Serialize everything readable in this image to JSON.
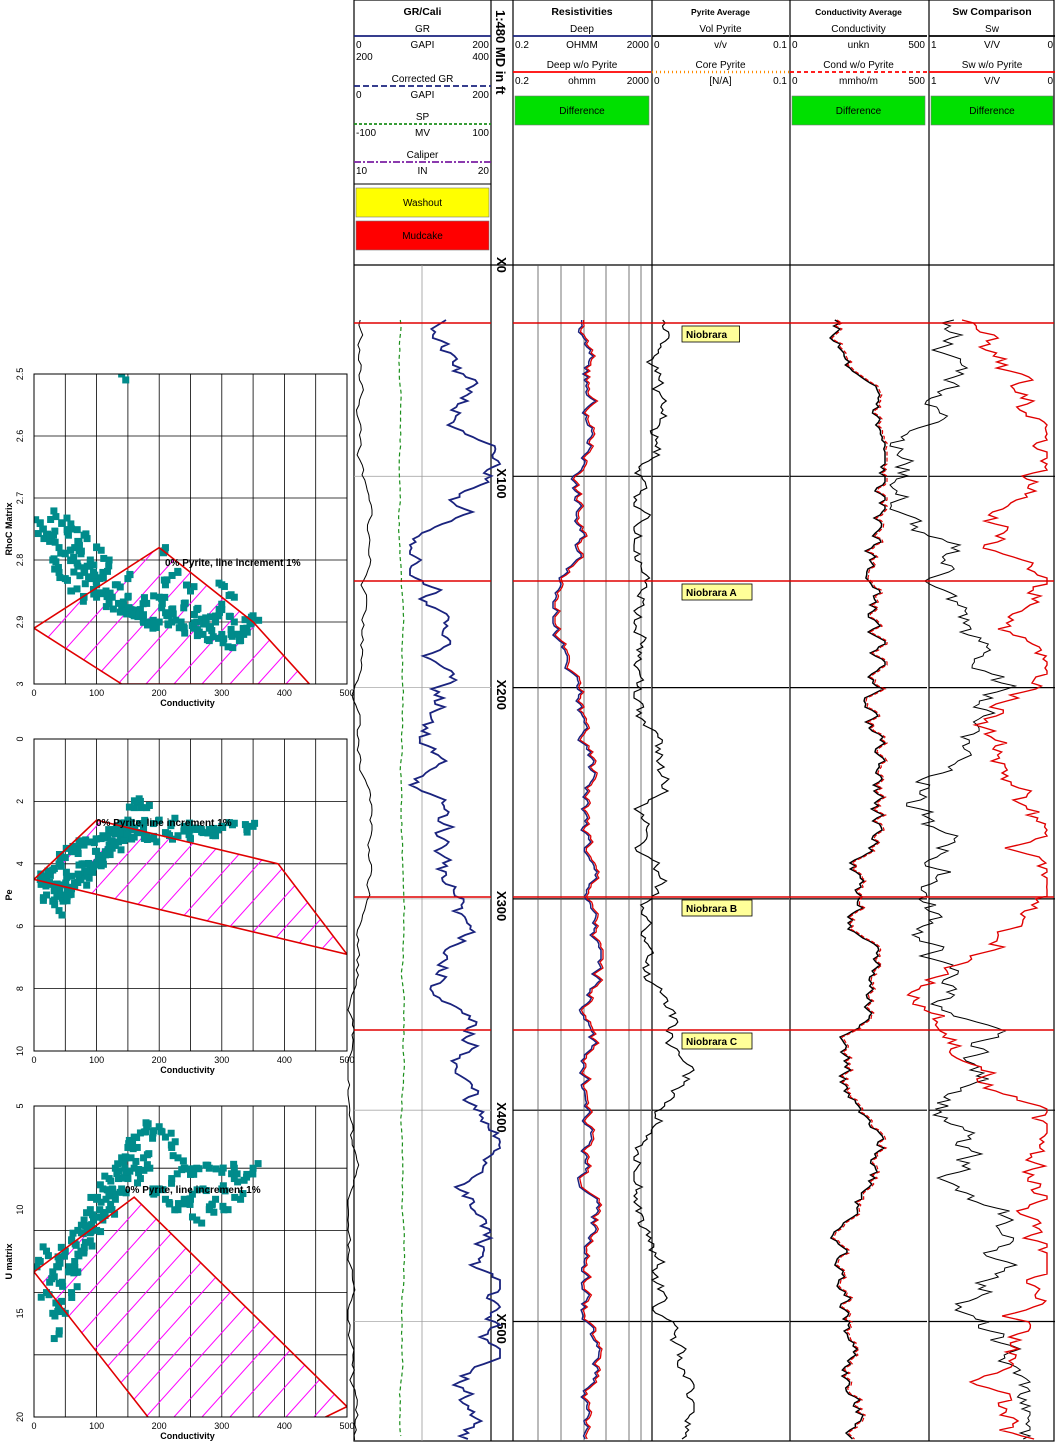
{
  "tracks": [
    {
      "title": "GR/Cali",
      "rows": [
        {
          "name": "GR",
          "min": "0",
          "unit": "GAPI",
          "max": "200",
          "color": "#1a237e",
          "dash": "",
          "alt_min": "200",
          "alt_max": "400"
        },
        {
          "name": "Corrected GR",
          "min": "0",
          "unit": "GAPI",
          "max": "200",
          "color": "#1a237e",
          "dash": "6,3"
        },
        {
          "name": "SP",
          "min": "-100",
          "unit": "MV",
          "max": "100",
          "color": "#1b8f1b",
          "dash": "3,2"
        },
        {
          "name": "Caliper",
          "min": "10",
          "unit": "IN",
          "max": "20",
          "color": "#7b1fa2",
          "dash": "7,2,2,2"
        }
      ],
      "boxes": [
        {
          "label": "Washout",
          "color": "#ffff00"
        },
        {
          "label": "Mudcake",
          "color": "#ff0000"
        }
      ]
    },
    {
      "title": "Resistivities",
      "rows": [
        {
          "name": "Deep",
          "min": "0.2",
          "unit": "OHMM",
          "max": "2000",
          "color": "#1a237e",
          "dash": ""
        },
        {
          "name": "Deep w/o Pyrite",
          "min": "0.2",
          "unit": "ohmm",
          "max": "2000",
          "color": "#ff0000",
          "dash": ""
        }
      ],
      "boxes": [
        {
          "label": "Difference",
          "color": "#00e000"
        }
      ]
    },
    {
      "title": "Pyrite Average",
      "rows": [
        {
          "name": "Vol Pyrite",
          "min": "0",
          "unit": "v/v",
          "max": "0.1",
          "color": "#000000",
          "dash": ""
        },
        {
          "name": "Core Pyrite",
          "min": "0",
          "unit": "[N/A]",
          "max": "0.1",
          "color": "#ff8c00",
          "dash": "dot"
        }
      ],
      "boxes": []
    },
    {
      "title": "Conductivity Average",
      "rows": [
        {
          "name": "Conductivity",
          "min": "0",
          "unit": "unkn",
          "max": "500",
          "color": "#000000",
          "dash": ""
        },
        {
          "name": "Cond w/o Pyrite",
          "min": "0",
          "unit": "mmho/m",
          "max": "500",
          "color": "#ff0000",
          "dash": "4,3"
        }
      ],
      "boxes": [
        {
          "label": "Difference",
          "color": "#00e000"
        }
      ]
    },
    {
      "title": "Sw Comparison",
      "rows": [
        {
          "name": "Sw",
          "min": "1",
          "unit": "V/V",
          "max": "0",
          "color": "#000000",
          "dash": ""
        },
        {
          "name": "Sw w/o Pyrite",
          "min": "1",
          "unit": "V/V",
          "max": "0",
          "color": "#ff0000",
          "dash": ""
        }
      ],
      "boxes": [
        {
          "label": "Difference",
          "color": "#00e000"
        }
      ]
    }
  ],
  "depth_track": {
    "scale_label": "1:480 MD in ft",
    "ticks": [
      "X0",
      "X100",
      "X200",
      "X300",
      "X400",
      "X500"
    ]
  },
  "formation_tops": [
    {
      "name": "Niobrara",
      "depth": 27
    },
    {
      "name": "Niobrara A",
      "depth": 149
    },
    {
      "name": "Niobrara B",
      "depth": 298
    },
    {
      "name": "Niobrara C",
      "depth": 361
    }
  ],
  "colors": {
    "teal": "#008b8b",
    "red": "#e00000",
    "magenta": "#ff00ff",
    "blue": "#1a237e",
    "green": "#00e000"
  },
  "chart_data": [
    {
      "type": "scatter",
      "title": "",
      "xlabel": "Conductivity",
      "ylabel": "RhoC Matrix",
      "xlim": [
        0,
        500
      ],
      "ylim": [
        2.5,
        3.0
      ],
      "y_inverted": true,
      "x_ticks": [
        "0",
        "100",
        "200",
        "300",
        "400",
        "500"
      ],
      "y_ticks": [
        "2.5",
        "2.6",
        "2.7",
        "2.8",
        "2.9",
        "3"
      ],
      "annotation": "0% Pyrite, line increment 1%",
      "grid": true,
      "points": [
        [
          10,
          2.74
        ],
        [
          15,
          2.75
        ],
        [
          20,
          2.76
        ],
        [
          25,
          2.77
        ],
        [
          30,
          2.76
        ],
        [
          40,
          2.78
        ],
        [
          50,
          2.79
        ],
        [
          60,
          2.8
        ],
        [
          70,
          2.81
        ],
        [
          80,
          2.82
        ],
        [
          90,
          2.83
        ],
        [
          100,
          2.84
        ],
        [
          30,
          2.8
        ],
        [
          40,
          2.82
        ],
        [
          50,
          2.83
        ],
        [
          60,
          2.85
        ],
        [
          80,
          2.86
        ],
        [
          100,
          2.86
        ],
        [
          120,
          2.87
        ],
        [
          140,
          2.88
        ],
        [
          160,
          2.89
        ],
        [
          180,
          2.9
        ],
        [
          200,
          2.9
        ],
        [
          220,
          2.88
        ],
        [
          240,
          2.87
        ],
        [
          260,
          2.9
        ],
        [
          280,
          2.91
        ],
        [
          300,
          2.92
        ],
        [
          320,
          2.9
        ],
        [
          340,
          2.91
        ],
        [
          300,
          2.88
        ],
        [
          320,
          2.86
        ],
        [
          250,
          2.85
        ],
        [
          210,
          2.84
        ],
        [
          230,
          2.82
        ],
        [
          210,
          2.78
        ],
        [
          300,
          2.84
        ],
        [
          290,
          2.9
        ],
        [
          270,
          2.92
        ],
        [
          240,
          2.91
        ],
        [
          150,
          2.86
        ],
        [
          130,
          2.84
        ],
        [
          110,
          2.82
        ],
        [
          90,
          2.8
        ],
        [
          70,
          2.77
        ],
        [
          60,
          2.75
        ],
        [
          80,
          2.76
        ],
        [
          100,
          2.78
        ],
        [
          120,
          2.8
        ],
        [
          150,
          2.83
        ],
        [
          180,
          2.87
        ],
        [
          200,
          2.86
        ],
        [
          220,
          2.9
        ],
        [
          260,
          2.88
        ],
        [
          280,
          2.93
        ],
        [
          310,
          2.94
        ],
        [
          330,
          2.93
        ],
        [
          35,
          2.73
        ],
        [
          45,
          2.74
        ],
        [
          55,
          2.76
        ],
        [
          65,
          2.78
        ],
        [
          75,
          2.79
        ],
        [
          85,
          2.81
        ],
        [
          95,
          2.82
        ],
        [
          105,
          2.83
        ],
        [
          115,
          2.85
        ],
        [
          125,
          2.86
        ],
        [
          135,
          2.87
        ],
        [
          145,
          2.88
        ],
        [
          155,
          2.88
        ],
        [
          165,
          2.89
        ],
        [
          175,
          2.9
        ],
        [
          190,
          2.91
        ],
        [
          170,
          2.88
        ],
        [
          205,
          2.87
        ],
        [
          215,
          2.89
        ],
        [
          235,
          2.9
        ],
        [
          255,
          2.91
        ],
        [
          275,
          2.9
        ],
        [
          295,
          2.89
        ],
        [
          315,
          2.92
        ],
        [
          335,
          2.92
        ],
        [
          345,
          2.9
        ],
        [
          350,
          2.89
        ],
        [
          140,
          2.5
        ]
      ],
      "envelope": [
        [
          0,
          2.91
        ],
        [
          200,
          2.78
        ],
        [
          350,
          2.9
        ],
        [
          440,
          3.0
        ],
        [
          140,
          3.0
        ]
      ]
    },
    {
      "type": "scatter",
      "title": "",
      "xlabel": "Conductivity",
      "ylabel": "Pe",
      "xlim": [
        0,
        500
      ],
      "ylim": [
        0,
        10
      ],
      "y_inverted": true,
      "x_ticks": [
        "0",
        "100",
        "200",
        "300",
        "400",
        "500"
      ],
      "y_ticks": [
        "0",
        "2",
        "4",
        "6",
        "8",
        "10"
      ],
      "annotation": "0% Pyrite, line increment 1%",
      "grid": true,
      "points": [
        [
          10,
          4.5
        ],
        [
          20,
          4.4
        ],
        [
          30,
          4.2
        ],
        [
          40,
          4.0
        ],
        [
          50,
          3.8
        ],
        [
          60,
          3.6
        ],
        [
          70,
          3.5
        ],
        [
          80,
          3.4
        ],
        [
          90,
          3.3
        ],
        [
          100,
          3.2
        ],
        [
          110,
          3.1
        ],
        [
          120,
          3.0
        ],
        [
          130,
          2.9
        ],
        [
          140,
          2.8
        ],
        [
          150,
          2.6
        ],
        [
          160,
          2.2
        ],
        [
          170,
          2.0
        ],
        [
          180,
          2.2
        ],
        [
          200,
          2.6
        ],
        [
          220,
          2.7
        ],
        [
          240,
          2.8
        ],
        [
          260,
          2.9
        ],
        [
          280,
          2.9
        ],
        [
          300,
          2.8
        ],
        [
          320,
          2.7
        ],
        [
          340,
          2.9
        ],
        [
          350,
          2.8
        ],
        [
          20,
          5.0
        ],
        [
          30,
          5.2
        ],
        [
          40,
          5.5
        ],
        [
          50,
          5.0
        ],
        [
          60,
          4.8
        ],
        [
          70,
          4.6
        ],
        [
          80,
          4.4
        ],
        [
          90,
          4.2
        ],
        [
          100,
          4.0
        ],
        [
          110,
          3.8
        ],
        [
          120,
          3.6
        ],
        [
          130,
          3.4
        ],
        [
          140,
          3.2
        ],
        [
          150,
          3.0
        ],
        [
          160,
          2.9
        ],
        [
          170,
          3.0
        ],
        [
          180,
          3.1
        ],
        [
          190,
          3.2
        ],
        [
          210,
          3.0
        ],
        [
          230,
          3.1
        ],
        [
          250,
          3.2
        ],
        [
          270,
          3.0
        ],
        [
          290,
          3.1
        ],
        [
          40,
          4.8
        ],
        [
          60,
          4.4
        ],
        [
          80,
          4.0
        ],
        [
          100,
          3.6
        ],
        [
          120,
          3.4
        ],
        [
          140,
          3.0
        ],
        [
          25,
          4.6
        ],
        [
          35,
          4.8
        ],
        [
          45,
          5.1
        ],
        [
          55,
          4.9
        ],
        [
          65,
          4.7
        ],
        [
          75,
          4.5
        ],
        [
          85,
          4.3
        ],
        [
          95,
          4.1
        ],
        [
          105,
          3.9
        ],
        [
          115,
          3.7
        ],
        [
          125,
          3.5
        ],
        [
          135,
          3.3
        ],
        [
          145,
          3.1
        ],
        [
          155,
          3.2
        ],
        [
          165,
          3.0
        ],
        [
          175,
          2.8
        ]
      ],
      "envelope": [
        [
          0,
          4.5
        ],
        [
          100,
          2.6
        ],
        [
          390,
          4.0
        ],
        [
          500,
          6.9
        ],
        [
          0,
          4.5
        ]
      ]
    },
    {
      "type": "scatter",
      "title": "",
      "xlabel": "Conductivity",
      "ylabel": "U matrix",
      "xlim": [
        0,
        500
      ],
      "ylim": [
        5,
        20
      ],
      "y_inverted": true,
      "x_ticks": [
        "0",
        "100",
        "200",
        "300",
        "400",
        "500"
      ],
      "y_ticks": [
        "5",
        "10",
        "15",
        "20"
      ],
      "annotation": "0% Pyrite, line increment 1%",
      "grid": true,
      "points": [
        [
          10,
          12.5
        ],
        [
          20,
          12.0
        ],
        [
          30,
          13.0
        ],
        [
          40,
          12.5
        ],
        [
          50,
          12.0
        ],
        [
          60,
          11.5
        ],
        [
          70,
          11.0
        ],
        [
          80,
          10.5
        ],
        [
          90,
          10.0
        ],
        [
          100,
          9.5
        ],
        [
          110,
          9.0
        ],
        [
          120,
          8.5
        ],
        [
          130,
          8.0
        ],
        [
          140,
          7.5
        ],
        [
          150,
          7.0
        ],
        [
          160,
          6.5
        ],
        [
          170,
          6.3
        ],
        [
          180,
          6.0
        ],
        [
          190,
          6.3
        ],
        [
          200,
          6.0
        ],
        [
          210,
          6.5
        ],
        [
          220,
          7.0
        ],
        [
          230,
          7.5
        ],
        [
          240,
          8.0
        ],
        [
          250,
          8.3
        ],
        [
          260,
          8.0
        ],
        [
          280,
          8.0
        ],
        [
          300,
          8.2
        ],
        [
          320,
          8.0
        ],
        [
          340,
          8.3
        ],
        [
          350,
          8.0
        ],
        [
          20,
          14.0
        ],
        [
          30,
          15.0
        ],
        [
          40,
          16.0
        ],
        [
          50,
          15.0
        ],
        [
          60,
          14.0
        ],
        [
          70,
          13.0
        ],
        [
          80,
          12.0
        ],
        [
          90,
          11.5
        ],
        [
          100,
          11.0
        ],
        [
          110,
          10.5
        ],
        [
          120,
          10.0
        ],
        [
          130,
          9.5
        ],
        [
          140,
          9.0
        ],
        [
          150,
          8.5
        ],
        [
          160,
          8.0
        ],
        [
          170,
          8.5
        ],
        [
          190,
          9.0
        ],
        [
          210,
          9.5
        ],
        [
          230,
          10.0
        ],
        [
          250,
          9.5
        ],
        [
          270,
          9.0
        ],
        [
          290,
          9.5
        ],
        [
          310,
          10.0
        ],
        [
          330,
          9.5
        ],
        [
          25,
          13.5
        ],
        [
          35,
          14.5
        ],
        [
          45,
          13.5
        ],
        [
          55,
          13.0
        ],
        [
          65,
          12.5
        ],
        [
          75,
          12.0
        ],
        [
          85,
          11.0
        ],
        [
          95,
          10.5
        ],
        [
          105,
          10.0
        ],
        [
          115,
          9.5
        ],
        [
          125,
          9.0
        ],
        [
          135,
          8.5
        ],
        [
          145,
          8.0
        ],
        [
          155,
          7.5
        ],
        [
          165,
          7.0
        ],
        [
          175,
          7.5
        ],
        [
          185,
          8.0
        ],
        [
          200,
          9.0
        ],
        [
          220,
          8.5
        ],
        [
          240,
          9.5
        ],
        [
          260,
          10.5
        ],
        [
          280,
          10.0
        ],
        [
          300,
          9.0
        ],
        [
          320,
          8.5
        ]
      ],
      "envelope": [
        [
          0,
          13.0
        ],
        [
          160,
          9.4
        ],
        [
          500,
          19.5
        ],
        [
          260,
          23.0
        ],
        [
          0,
          13.0
        ]
      ]
    }
  ]
}
